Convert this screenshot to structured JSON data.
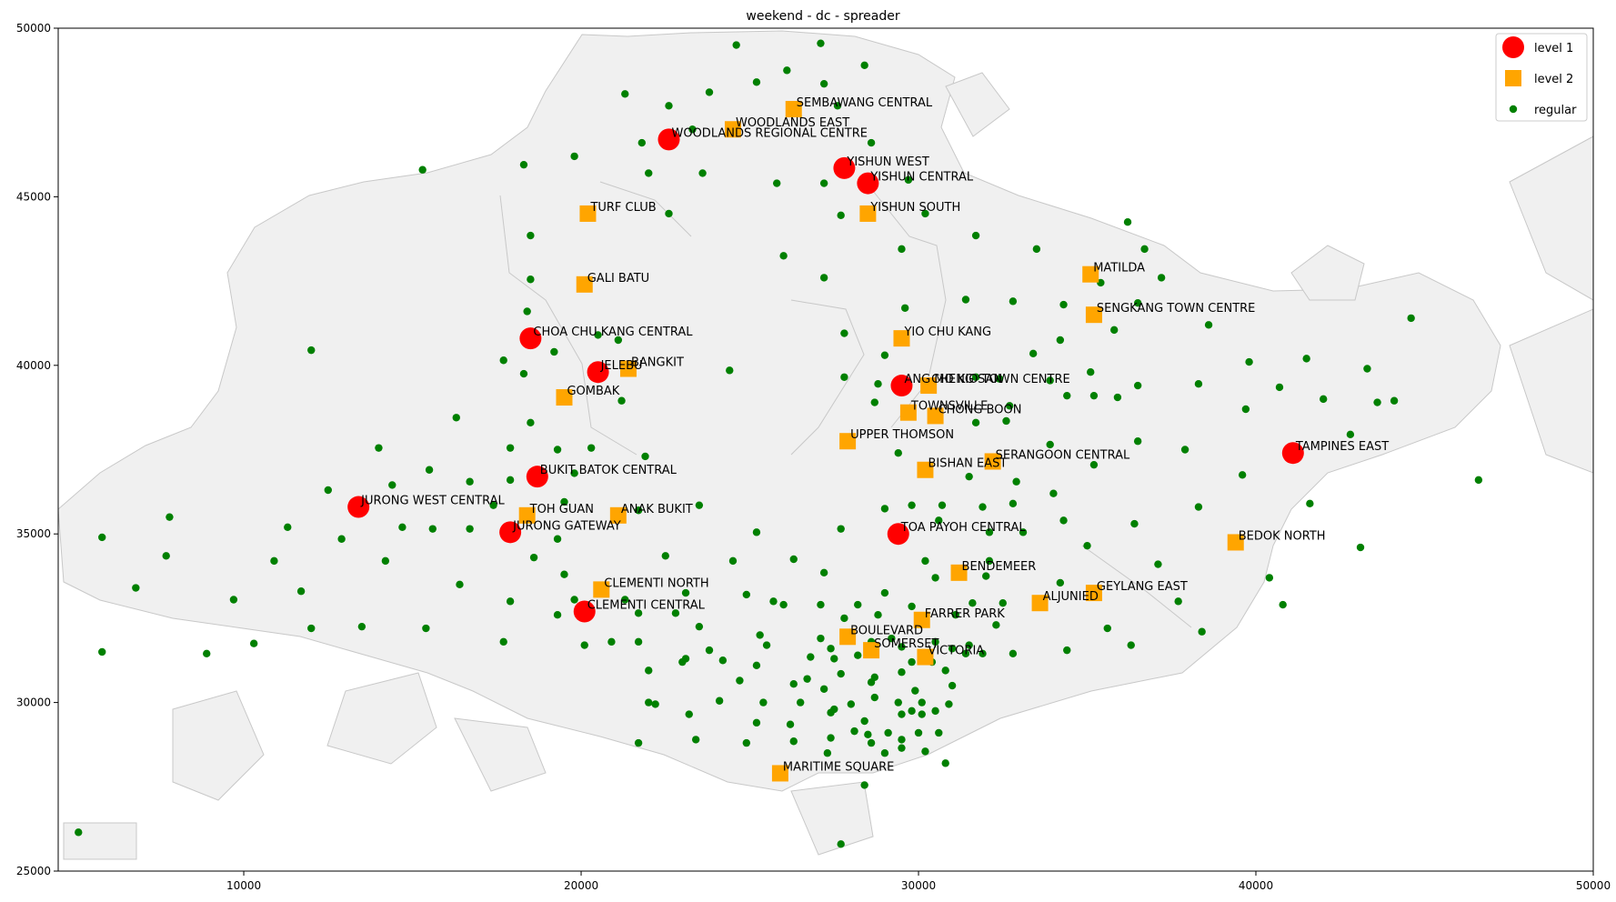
{
  "chart_data": {
    "type": "scatter",
    "title": "weekend - dc - spreader",
    "xlabel": "",
    "ylabel": "",
    "xlim": [
      4500,
      50000
    ],
    "ylim": [
      25000,
      50000
    ],
    "xticks": [
      10000,
      20000,
      30000,
      40000,
      50000
    ],
    "yticks": [
      25000,
      30000,
      35000,
      40000,
      45000,
      50000
    ],
    "grid": false,
    "legend_position": "top-right",
    "colors": {
      "level1": "#ff0000",
      "level2": "#ffa500",
      "regular": "#008000",
      "land": "#f0f0f0",
      "coast": "#c8c8c8"
    },
    "legend": [
      {
        "key": "level1",
        "label": "level 1",
        "marker": "circle"
      },
      {
        "key": "level2",
        "label": "level 2",
        "marker": "square"
      },
      {
        "key": "regular",
        "label": "regular",
        "marker": "dot"
      }
    ],
    "level1": [
      {
        "name": "WOODLANDS REGIONAL CENTRE",
        "x": 22600,
        "y": 46700
      },
      {
        "name": "YISHUN WEST",
        "x": 27800,
        "y": 45850
      },
      {
        "name": "YISHUN CENTRAL",
        "x": 28500,
        "y": 45400
      },
      {
        "name": "CHOA CHU KANG CENTRAL",
        "x": 18500,
        "y": 40800
      },
      {
        "name": "JELEBU",
        "x": 20500,
        "y": 39800
      },
      {
        "name": "ANG MO KIO TOWN CENTRE",
        "x": 29500,
        "y": 39400
      },
      {
        "name": "TAMPINES EAST",
        "x": 41100,
        "y": 37400
      },
      {
        "name": "BUKIT BATOK CENTRAL",
        "x": 18700,
        "y": 36700
      },
      {
        "name": "JURONG WEST CENTRAL",
        "x": 13400,
        "y": 35800
      },
      {
        "name": "JURONG GATEWAY",
        "x": 17900,
        "y": 35050
      },
      {
        "name": "TOA PAYOH CENTRAL",
        "x": 29400,
        "y": 35000
      },
      {
        "name": "CLEMENTI CENTRAL",
        "x": 20100,
        "y": 32700
      }
    ],
    "level2": [
      {
        "name": "SEMBAWANG CENTRAL",
        "x": 26300,
        "y": 47600
      },
      {
        "name": "WOODLANDS EAST",
        "x": 24500,
        "y": 47000
      },
      {
        "name": "TURF CLUB",
        "x": 20200,
        "y": 44500
      },
      {
        "name": "YISHUN SOUTH",
        "x": 28500,
        "y": 44500
      },
      {
        "name": "GALI BATU",
        "x": 20100,
        "y": 42400
      },
      {
        "name": "MATILDA",
        "x": 35100,
        "y": 42700
      },
      {
        "name": "SENGKANG TOWN CENTRE",
        "x": 35200,
        "y": 41500
      },
      {
        "name": "YIO CHU KANG",
        "x": 29500,
        "y": 40800
      },
      {
        "name": "BANGKIT",
        "x": 21400,
        "y": 39900
      },
      {
        "name": "CHENG SAN",
        "x": 30300,
        "y": 39400
      },
      {
        "name": "GOMBAK",
        "x": 19500,
        "y": 39050
      },
      {
        "name": "TOWNSVILLE",
        "x": 29700,
        "y": 38600
      },
      {
        "name": "CHONG BOON",
        "x": 30500,
        "y": 38500
      },
      {
        "name": "UPPER THOMSON",
        "x": 27900,
        "y": 37750
      },
      {
        "name": "SERANGOON CENTRAL",
        "x": 32200,
        "y": 37150
      },
      {
        "name": "BISHAN EAST",
        "x": 30200,
        "y": 36900
      },
      {
        "name": "TOH GUAN",
        "x": 18400,
        "y": 35550
      },
      {
        "name": "ANAK BUKIT",
        "x": 21100,
        "y": 35550
      },
      {
        "name": "BEDOK NORTH",
        "x": 39400,
        "y": 34750
      },
      {
        "name": "BENDEMEER",
        "x": 31200,
        "y": 33850
      },
      {
        "name": "CLEMENTI NORTH",
        "x": 20600,
        "y": 33350
      },
      {
        "name": "GEYLANG EAST",
        "x": 35200,
        "y": 33250
      },
      {
        "name": "ALJUNIED",
        "x": 33600,
        "y": 32950
      },
      {
        "name": "FARRER PARK",
        "x": 30100,
        "y": 32450
      },
      {
        "name": "BOULEVARD",
        "x": 27900,
        "y": 31950
      },
      {
        "name": "SOMERSET",
        "x": 28600,
        "y": 31550
      },
      {
        "name": "VICTORIA",
        "x": 30200,
        "y": 31350
      },
      {
        "name": "MARITIME SQUARE",
        "x": 25900,
        "y": 27900
      }
    ],
    "regular": [
      [
        24600,
        49500
      ],
      [
        27100,
        49550
      ],
      [
        26100,
        48750
      ],
      [
        28400,
        48900
      ],
      [
        25200,
        48400
      ],
      [
        27200,
        48350
      ],
      [
        21300,
        48050
      ],
      [
        23800,
        48100
      ],
      [
        22600,
        47700
      ],
      [
        27600,
        47700
      ],
      [
        23300,
        47000
      ],
      [
        21800,
        46600
      ],
      [
        28600,
        46600
      ],
      [
        15300,
        45800
      ],
      [
        18300,
        45950
      ],
      [
        19800,
        46200
      ],
      [
        22000,
        45700
      ],
      [
        23600,
        45700
      ],
      [
        25800,
        45400
      ],
      [
        27200,
        45400
      ],
      [
        29700,
        45500
      ],
      [
        22600,
        44500
      ],
      [
        27700,
        44450
      ],
      [
        30200,
        44500
      ],
      [
        18500,
        43850
      ],
      [
        26000,
        43250
      ],
      [
        29500,
        43450
      ],
      [
        31700,
        43850
      ],
      [
        33500,
        43450
      ],
      [
        36200,
        44250
      ],
      [
        36700,
        43450
      ],
      [
        18500,
        42550
      ],
      [
        27200,
        42600
      ],
      [
        35400,
        42450
      ],
      [
        37200,
        42600
      ],
      [
        31400,
        41950
      ],
      [
        32800,
        41900
      ],
      [
        34300,
        41800
      ],
      [
        18400,
        41600
      ],
      [
        29600,
        41700
      ],
      [
        36500,
        41850
      ],
      [
        35200,
        41550
      ],
      [
        38600,
        41200
      ],
      [
        44600,
        41400
      ],
      [
        21100,
        40750
      ],
      [
        20500,
        40900
      ],
      [
        27800,
        40950
      ],
      [
        34200,
        40750
      ],
      [
        35800,
        41050
      ],
      [
        12000,
        40450
      ],
      [
        29000,
        40300
      ],
      [
        33400,
        40350
      ],
      [
        17700,
        40150
      ],
      [
        19200,
        40400
      ],
      [
        24400,
        39850
      ],
      [
        18300,
        39750
      ],
      [
        27800,
        39650
      ],
      [
        28800,
        39450
      ],
      [
        31700,
        39650
      ],
      [
        32400,
        39600
      ],
      [
        33900,
        39550
      ],
      [
        35100,
        39800
      ],
      [
        36500,
        39400
      ],
      [
        38300,
        39450
      ],
      [
        39800,
        40100
      ],
      [
        41500,
        40200
      ],
      [
        43300,
        39900
      ],
      [
        40700,
        39350
      ],
      [
        42000,
        39000
      ],
      [
        43600,
        38900
      ],
      [
        44100,
        38950
      ],
      [
        21200,
        38950
      ],
      [
        28700,
        38900
      ],
      [
        32700,
        38800
      ],
      [
        34400,
        39100
      ],
      [
        35200,
        39100
      ],
      [
        35900,
        39050
      ],
      [
        39700,
        38700
      ],
      [
        16300,
        38450
      ],
      [
        18500,
        38300
      ],
      [
        31700,
        38300
      ],
      [
        32600,
        38350
      ],
      [
        42800,
        37950
      ],
      [
        33900,
        37650
      ],
      [
        36500,
        37750
      ],
      [
        14000,
        37550
      ],
      [
        17900,
        37550
      ],
      [
        19300,
        37500
      ],
      [
        20300,
        37550
      ],
      [
        21900,
        37300
      ],
      [
        29400,
        37400
      ],
      [
        35200,
        37050
      ],
      [
        37900,
        37500
      ],
      [
        15500,
        36900
      ],
      [
        14400,
        36450
      ],
      [
        16700,
        36550
      ],
      [
        17900,
        36600
      ],
      [
        19800,
        36800
      ],
      [
        31500,
        36700
      ],
      [
        32900,
        36550
      ],
      [
        39600,
        36750
      ],
      [
        46600,
        36600
      ],
      [
        12500,
        36300
      ],
      [
        34000,
        36200
      ],
      [
        19500,
        35950
      ],
      [
        21700,
        35700
      ],
      [
        23500,
        35850
      ],
      [
        29000,
        35750
      ],
      [
        29800,
        35850
      ],
      [
        30700,
        35850
      ],
      [
        31900,
        35800
      ],
      [
        32800,
        35900
      ],
      [
        41600,
        35900
      ],
      [
        7800,
        35500
      ],
      [
        17400,
        35850
      ],
      [
        11300,
        35200
      ],
      [
        14700,
        35200
      ],
      [
        15600,
        35150
      ],
      [
        16700,
        35150
      ],
      [
        12900,
        34850
      ],
      [
        19300,
        34850
      ],
      [
        25200,
        35050
      ],
      [
        27700,
        35150
      ],
      [
        30600,
        35400
      ],
      [
        32100,
        35050
      ],
      [
        33100,
        35050
      ],
      [
        34300,
        35400
      ],
      [
        36400,
        35300
      ],
      [
        5800,
        34900
      ],
      [
        30200,
        34200
      ],
      [
        35000,
        34650
      ],
      [
        43100,
        34600
      ],
      [
        7700,
        34350
      ],
      [
        10900,
        34200
      ],
      [
        14200,
        34200
      ],
      [
        18600,
        34300
      ],
      [
        22500,
        34350
      ],
      [
        24500,
        34200
      ],
      [
        26300,
        34250
      ],
      [
        32100,
        34200
      ],
      [
        37100,
        34100
      ],
      [
        38300,
        35800
      ],
      [
        19500,
        33800
      ],
      [
        27200,
        33850
      ],
      [
        30500,
        33700
      ],
      [
        32000,
        33750
      ],
      [
        34200,
        33550
      ],
      [
        40400,
        33700
      ],
      [
        6800,
        33400
      ],
      [
        11700,
        33300
      ],
      [
        16400,
        33500
      ],
      [
        23100,
        33250
      ],
      [
        24900,
        33200
      ],
      [
        29000,
        33250
      ],
      [
        9700,
        33050
      ],
      [
        17900,
        33000
      ],
      [
        19800,
        33050
      ],
      [
        21300,
        33050
      ],
      [
        25700,
        33000
      ],
      [
        26000,
        32900
      ],
      [
        27100,
        32900
      ],
      [
        28200,
        32900
      ],
      [
        29800,
        32850
      ],
      [
        31600,
        32950
      ],
      [
        32500,
        32950
      ],
      [
        37700,
        33000
      ],
      [
        40800,
        32900
      ],
      [
        19300,
        32600
      ],
      [
        21700,
        32650
      ],
      [
        22800,
        32650
      ],
      [
        23500,
        32250
      ],
      [
        27800,
        32500
      ],
      [
        28800,
        32600
      ],
      [
        31100,
        32600
      ],
      [
        32300,
        32300
      ],
      [
        12000,
        32200
      ],
      [
        13500,
        32250
      ],
      [
        15400,
        32200
      ],
      [
        25300,
        32000
      ],
      [
        27100,
        31900
      ],
      [
        29200,
        31900
      ],
      [
        30500,
        31800
      ],
      [
        31500,
        31700
      ],
      [
        35600,
        32200
      ],
      [
        38400,
        32100
      ],
      [
        17700,
        31800
      ],
      [
        20100,
        31700
      ],
      [
        20900,
        31800
      ],
      [
        21700,
        31800
      ],
      [
        23800,
        31550
      ],
      [
        25500,
        31700
      ],
      [
        27400,
        31600
      ],
      [
        28600,
        31800
      ],
      [
        29500,
        31650
      ],
      [
        31000,
        31600
      ],
      [
        31900,
        31450
      ],
      [
        32800,
        31450
      ],
      [
        34400,
        31550
      ],
      [
        36300,
        31700
      ],
      [
        5800,
        31500
      ],
      [
        8900,
        31450
      ],
      [
        10300,
        31750
      ],
      [
        22000,
        30950
      ],
      [
        23000,
        31200
      ],
      [
        24200,
        31250
      ],
      [
        25200,
        31100
      ],
      [
        26800,
        31350
      ],
      [
        27500,
        31300
      ],
      [
        28200,
        31400
      ],
      [
        29800,
        31200
      ],
      [
        30400,
        31200
      ],
      [
        31400,
        31450
      ],
      [
        24700,
        30650
      ],
      [
        27700,
        30850
      ],
      [
        28700,
        30750
      ],
      [
        29500,
        30900
      ],
      [
        30800,
        30950
      ],
      [
        26300,
        30550
      ],
      [
        27200,
        30400
      ],
      [
        28600,
        30600
      ],
      [
        29900,
        30350
      ],
      [
        31000,
        30500
      ],
      [
        22200,
        29950
      ],
      [
        23200,
        29650
      ],
      [
        24100,
        30050
      ],
      [
        25400,
        30000
      ],
      [
        26500,
        30000
      ],
      [
        27500,
        29800
      ],
      [
        28000,
        29950
      ],
      [
        29400,
        30000
      ],
      [
        30100,
        30000
      ],
      [
        30900,
        29950
      ],
      [
        23400,
        28900
      ],
      [
        25200,
        29400
      ],
      [
        26200,
        29350
      ],
      [
        27400,
        29700
      ],
      [
        28400,
        29450
      ],
      [
        29500,
        29650
      ],
      [
        29800,
        29750
      ],
      [
        30100,
        29650
      ],
      [
        30500,
        29750
      ],
      [
        24900,
        28800
      ],
      [
        26300,
        28850
      ],
      [
        27300,
        28500
      ],
      [
        28100,
        29150
      ],
      [
        28500,
        29050
      ],
      [
        28600,
        28800
      ],
      [
        29100,
        29100
      ],
      [
        29500,
        28900
      ],
      [
        30000,
        29100
      ],
      [
        30600,
        29100
      ],
      [
        21700,
        28800
      ],
      [
        27400,
        28950
      ],
      [
        29000,
        28500
      ],
      [
        29500,
        28650
      ],
      [
        30200,
        28550
      ],
      [
        30800,
        28200
      ],
      [
        28400,
        27550
      ],
      [
        27700,
        25800
      ],
      [
        5100,
        26150
      ],
      [
        22000,
        30000
      ],
      [
        23100,
        31300
      ],
      [
        26700,
        30700
      ],
      [
        28700,
        30150
      ]
    ]
  }
}
